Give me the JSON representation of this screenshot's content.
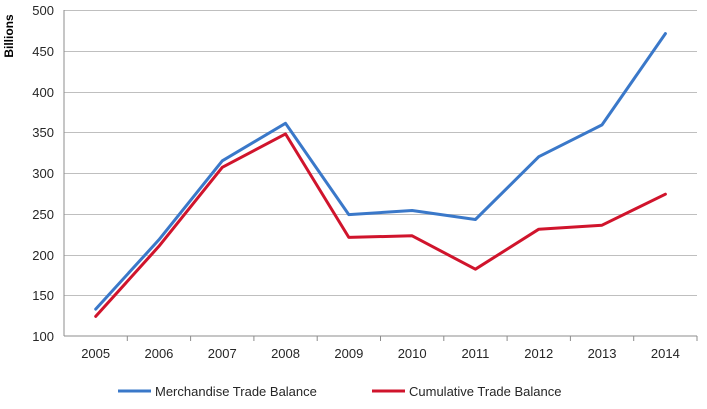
{
  "chart_data": {
    "type": "line",
    "title": "",
    "xlabel": "",
    "ylabel": "Billions",
    "categories": [
      "2005",
      "2006",
      "2007",
      "2008",
      "2009",
      "2010",
      "2011",
      "2012",
      "2013",
      "2014"
    ],
    "ylim": [
      100,
      500
    ],
    "yticks": [
      100,
      150,
      200,
      250,
      300,
      350,
      400,
      450,
      500
    ],
    "grid": true,
    "legend_position": "bottom",
    "series": [
      {
        "name": "Merchandise Trade Balance",
        "color": "#3a78c9",
        "values": [
          133,
          218,
          315,
          361,
          249,
          254,
          243,
          320,
          359,
          471
        ]
      },
      {
        "name": "Cumulative Trade Balance",
        "color": "#d0142c",
        "values": [
          124,
          210,
          307,
          348,
          221,
          223,
          182,
          231,
          236,
          274
        ]
      }
    ]
  }
}
